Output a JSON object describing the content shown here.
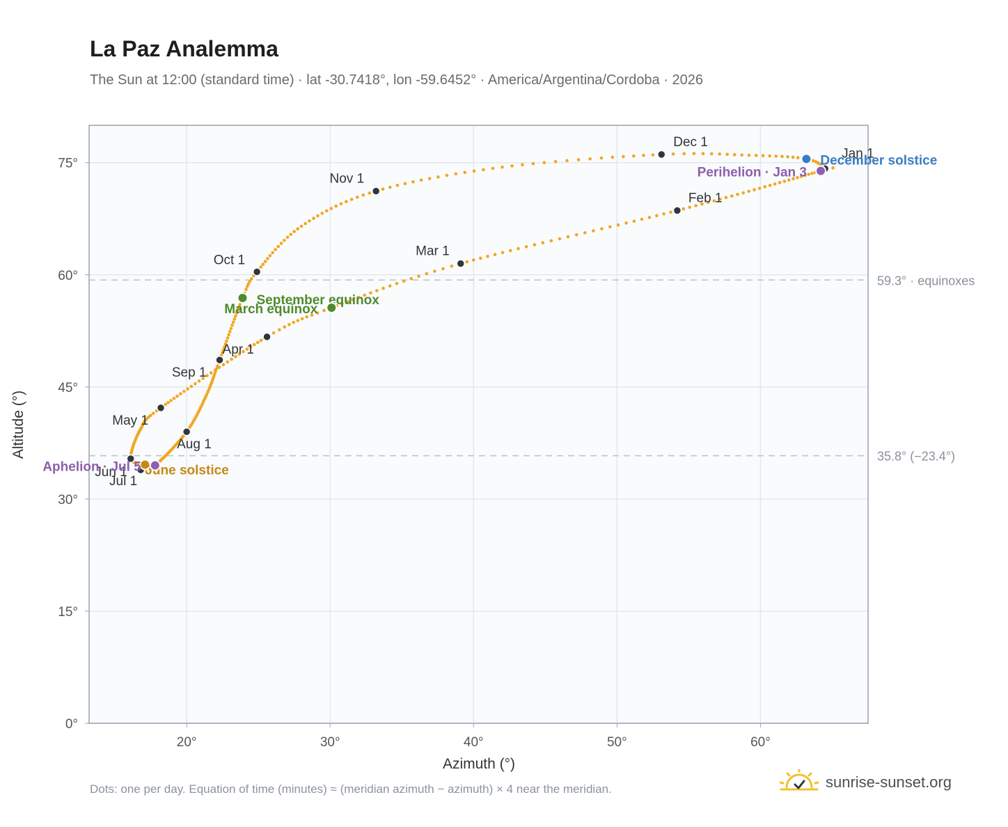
{
  "title": "La Paz Analemma",
  "subtitle": "The Sun at 12:00 (standard time) · lat -30.7418°, lon -59.6452° · America/Argentina/Cordoba · 2026",
  "footnote": "Dots: one per day. Equation of time (minutes) ≈ (meridian azimuth − azimuth) × 4 near the meridian.",
  "brand": {
    "name": "sunrise-sunset.org",
    "icon": "sun-checkmark-logo-icon"
  },
  "colors": {
    "curve": "#f2a623",
    "month_dot": "#2f3640",
    "december_solstice": "#3a7cc4",
    "equinox": "#4f8a2c",
    "june_solstice": "#c48a17",
    "apsis": "#8e5fae",
    "reference_line": "#bcc2c8",
    "plot_bg": "#f9fbfd"
  },
  "chart_data": {
    "type": "scatter",
    "xlabel": "Azimuth (°)",
    "ylabel": "Altitude (°)",
    "xlim": [
      13.2,
      67.5
    ],
    "ylim": [
      0,
      80
    ],
    "x_ticks": [
      20,
      30,
      40,
      50,
      60
    ],
    "y_ticks": [
      0,
      15,
      30,
      45,
      60,
      75
    ],
    "x_tick_labels": [
      "20°",
      "30°",
      "40°",
      "50°",
      "60°"
    ],
    "y_tick_labels": [
      "0°",
      "15°",
      "30°",
      "45°",
      "60°",
      "75°"
    ],
    "grid": true,
    "reference_lines": [
      {
        "y": 59.3,
        "label": "59.3° · equinoxes"
      },
      {
        "y": 35.8,
        "label": "35.8° (−23.4°)"
      }
    ],
    "curve_anchors": [
      {
        "doy": 1,
        "x": 64.5,
        "y": 74.2
      },
      {
        "doy": 3,
        "x": 64.2,
        "y": 73.9
      },
      {
        "doy": 32,
        "x": 54.2,
        "y": 68.6
      },
      {
        "doy": 60,
        "x": 39.1,
        "y": 61.5
      },
      {
        "doy": 79,
        "x": 30.1,
        "y": 55.6
      },
      {
        "doy": 91,
        "x": 25.6,
        "y": 51.7
      },
      {
        "doy": 121,
        "x": 18.2,
        "y": 42.2
      },
      {
        "doy": 135,
        "x": 16.8,
        "y": 39.4
      },
      {
        "doy": 152,
        "x": 16.1,
        "y": 35.4
      },
      {
        "doy": 172,
        "x": 17.1,
        "y": 34.6
      },
      {
        "doy": 182,
        "x": 16.8,
        "y": 33.9
      },
      {
        "doy": 186,
        "x": 17.8,
        "y": 34.5
      },
      {
        "doy": 213,
        "x": 20.0,
        "y": 39.0
      },
      {
        "doy": 230,
        "x": 21.4,
        "y": 44.0
      },
      {
        "doy": 244,
        "x": 22.3,
        "y": 48.6
      },
      {
        "doy": 266,
        "x": 23.9,
        "y": 56.9
      },
      {
        "doy": 274,
        "x": 24.9,
        "y": 60.4
      },
      {
        "doy": 290,
        "x": 28.0,
        "y": 66.5
      },
      {
        "doy": 305,
        "x": 33.2,
        "y": 71.2
      },
      {
        "doy": 320,
        "x": 42.0,
        "y": 74.4
      },
      {
        "doy": 335,
        "x": 53.1,
        "y": 76.1
      },
      {
        "doy": 345,
        "x": 59.2,
        "y": 76.0
      },
      {
        "doy": 355,
        "x": 63.2,
        "y": 75.5
      },
      {
        "doy": 365,
        "x": 64.5,
        "y": 74.2
      }
    ],
    "month_markers": [
      {
        "label": "Jan 1",
        "x": 64.5,
        "y": 74.2
      },
      {
        "label": "Feb 1",
        "x": 54.2,
        "y": 68.6
      },
      {
        "label": "Mar 1",
        "x": 39.1,
        "y": 61.5
      },
      {
        "label": "Apr 1",
        "x": 25.6,
        "y": 51.7
      },
      {
        "label": "May 1",
        "x": 18.2,
        "y": 42.2
      },
      {
        "label": "Jun 1",
        "x": 16.1,
        "y": 35.4
      },
      {
        "label": "Jul 1",
        "x": 16.8,
        "y": 33.9
      },
      {
        "label": "Aug 1",
        "x": 20.0,
        "y": 39.0
      },
      {
        "label": "Sep 1",
        "x": 22.3,
        "y": 48.6
      },
      {
        "label": "Oct 1",
        "x": 24.9,
        "y": 60.4
      },
      {
        "label": "Nov 1",
        "x": 33.2,
        "y": 71.2
      },
      {
        "label": "Dec 1",
        "x": 53.1,
        "y": 76.1
      }
    ],
    "events": [
      {
        "label": "December solstice",
        "x": 63.2,
        "y": 75.5,
        "kind": "december_solstice"
      },
      {
        "label": "Perihelion · Jan 3",
        "x": 64.2,
        "y": 73.9,
        "kind": "apsis"
      },
      {
        "label": "September equinox",
        "x": 23.9,
        "y": 56.9,
        "kind": "equinox"
      },
      {
        "label": "March equinox",
        "x": 30.1,
        "y": 55.6,
        "kind": "equinox"
      },
      {
        "label": "June solstice",
        "x": 17.1,
        "y": 34.6,
        "kind": "june_solstice"
      },
      {
        "label": "Aphelion · Jul 5",
        "x": 17.8,
        "y": 34.5,
        "kind": "apsis"
      }
    ]
  }
}
